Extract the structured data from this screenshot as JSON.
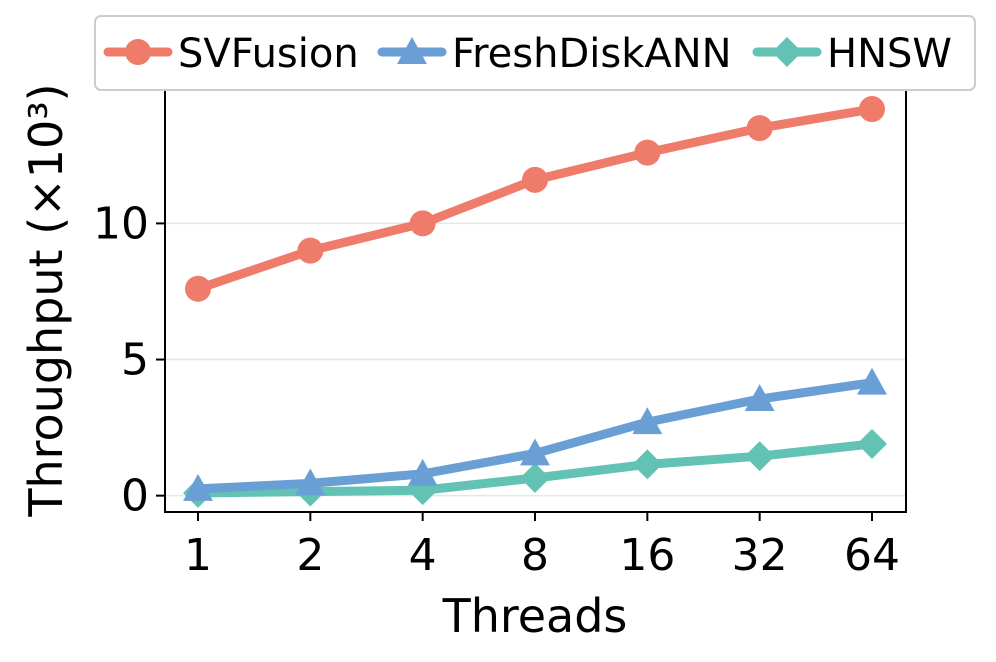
{
  "chart_data": {
    "type": "line",
    "xlabel": "Threads",
    "ylabel": "Throughput (×10³)",
    "categories": [
      "1",
      "2",
      "4",
      "8",
      "16",
      "32",
      "64"
    ],
    "ylim": [
      -0.6,
      14.9
    ],
    "yticks": [
      0,
      5,
      10
    ],
    "grid": "horizontal",
    "legend_position": "top",
    "series": [
      {
        "name": "SVFusion",
        "color": "#ef7b6b",
        "marker": "circle",
        "values": [
          7.6,
          9.0,
          10.0,
          11.6,
          12.6,
          13.5,
          14.2
        ]
      },
      {
        "name": "FreshDiskANN",
        "color": "#6a9fd6",
        "marker": "triangle",
        "values": [
          0.25,
          0.45,
          0.8,
          1.55,
          2.7,
          3.55,
          4.15
        ]
      },
      {
        "name": "HNSW",
        "color": "#62c2b3",
        "marker": "diamond",
        "values": [
          0.1,
          0.15,
          0.2,
          0.65,
          1.15,
          1.45,
          1.9
        ]
      }
    ]
  }
}
